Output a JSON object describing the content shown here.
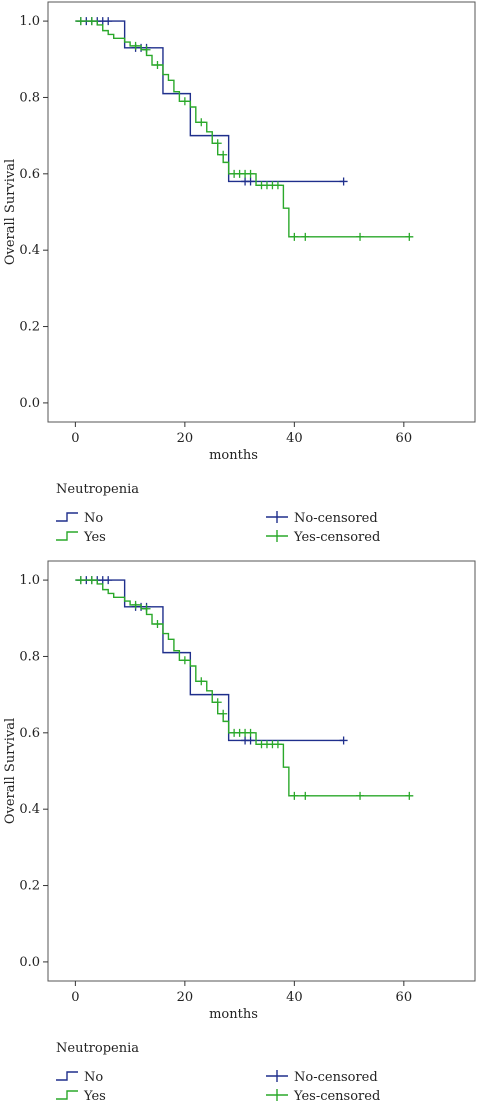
{
  "colors": {
    "no": "#1f2f8c",
    "yes": "#2aa82a",
    "axis": "#333333",
    "frame": "#555555"
  },
  "chart_data": [
    {
      "type": "line",
      "title": "",
      "xlabel": "months",
      "ylabel": "Overall Survival",
      "xlim": [
        -5,
        73
      ],
      "ylim": [
        -0.05,
        1.05
      ],
      "xticks": [
        0,
        20,
        40,
        60
      ],
      "yticks": [
        0.0,
        0.2,
        0.4,
        0.6,
        0.8,
        1.0
      ],
      "ytick_labels": [
        "0.0",
        "0.2",
        "0.4",
        "0.6",
        "0.8",
        "1.0"
      ],
      "grid": false,
      "legend_title": "Neutropenia",
      "legend_position": "bottom",
      "series": [
        {
          "name": "No",
          "color_key": "no",
          "steps": [
            [
              0,
              1.0
            ],
            [
              9,
              0.93
            ],
            [
              16,
              0.81
            ],
            [
              21,
              0.7
            ],
            [
              28,
              0.58
            ],
            [
              49,
              0.58
            ]
          ],
          "censored": [
            [
              1,
              1.0
            ],
            [
              2,
              1.0
            ],
            [
              3,
              1.0
            ],
            [
              4,
              1.0
            ],
            [
              5,
              1.0
            ],
            [
              6,
              1.0
            ],
            [
              11,
              0.93
            ],
            [
              12,
              0.93
            ],
            [
              13,
              0.93
            ],
            [
              31,
              0.58
            ],
            [
              32,
              0.58
            ],
            [
              49,
              0.58
            ]
          ]
        },
        {
          "name": "Yes",
          "color_key": "yes",
          "steps": [
            [
              0,
              1.0
            ],
            [
              4,
              0.99
            ],
            [
              5,
              0.975
            ],
            [
              6,
              0.965
            ],
            [
              7,
              0.955
            ],
            [
              9,
              0.945
            ],
            [
              10,
              0.935
            ],
            [
              12,
              0.925
            ],
            [
              13,
              0.91
            ],
            [
              14,
              0.885
            ],
            [
              16,
              0.86
            ],
            [
              17,
              0.845
            ],
            [
              18,
              0.815
            ],
            [
              19,
              0.79
            ],
            [
              21,
              0.775
            ],
            [
              22,
              0.735
            ],
            [
              24,
              0.71
            ],
            [
              25,
              0.68
            ],
            [
              26,
              0.65
            ],
            [
              27,
              0.63
            ],
            [
              28,
              0.6
            ],
            [
              33,
              0.57
            ],
            [
              38,
              0.51
            ],
            [
              39,
              0.435
            ],
            [
              61,
              0.435
            ]
          ],
          "censored": [
            [
              1,
              1.0
            ],
            [
              3,
              1.0
            ],
            [
              11,
              0.935
            ],
            [
              13,
              0.925
            ],
            [
              15,
              0.885
            ],
            [
              20,
              0.79
            ],
            [
              23,
              0.735
            ],
            [
              26,
              0.68
            ],
            [
              27,
              0.65
            ],
            [
              29,
              0.6
            ],
            [
              30,
              0.6
            ],
            [
              31,
              0.6
            ],
            [
              32,
              0.6
            ],
            [
              34,
              0.57
            ],
            [
              35,
              0.57
            ],
            [
              36,
              0.57
            ],
            [
              37,
              0.57
            ],
            [
              40,
              0.435
            ],
            [
              42,
              0.435
            ],
            [
              52,
              0.435
            ],
            [
              61,
              0.435
            ]
          ]
        }
      ],
      "legend": {
        "items": [
          {
            "label": "No",
            "kind": "line",
            "color_key": "no"
          },
          {
            "label": "No-censored",
            "kind": "censor",
            "color_key": "no"
          },
          {
            "label": "Yes",
            "kind": "line",
            "color_key": "yes"
          },
          {
            "label": "Yes-censored",
            "kind": "censor",
            "color_key": "yes"
          }
        ]
      }
    },
    {
      "type": "line",
      "title": "",
      "xlabel": "months",
      "ylabel": "Overall Survival",
      "xlim": [
        -5,
        73
      ],
      "ylim": [
        -0.05,
        1.05
      ],
      "xticks": [
        0,
        20,
        40,
        60
      ],
      "yticks": [
        0.0,
        0.2,
        0.4,
        0.6,
        0.8,
        1.0
      ],
      "ytick_labels": [
        "0.0",
        "0.2",
        "0.4",
        "0.6",
        "0.8",
        "1.0"
      ],
      "grid": false,
      "legend_title": "Neutropenia",
      "legend_position": "bottom",
      "series": [
        {
          "name": "No",
          "color_key": "no",
          "steps": [
            [
              0,
              1.0
            ],
            [
              9,
              0.93
            ],
            [
              16,
              0.81
            ],
            [
              21,
              0.7
            ],
            [
              28,
              0.58
            ],
            [
              49,
              0.58
            ]
          ],
          "censored": [
            [
              1,
              1.0
            ],
            [
              2,
              1.0
            ],
            [
              3,
              1.0
            ],
            [
              4,
              1.0
            ],
            [
              5,
              1.0
            ],
            [
              6,
              1.0
            ],
            [
              11,
              0.93
            ],
            [
              12,
              0.93
            ],
            [
              13,
              0.93
            ],
            [
              31,
              0.58
            ],
            [
              32,
              0.58
            ],
            [
              49,
              0.58
            ]
          ]
        },
        {
          "name": "Yes",
          "color_key": "yes",
          "steps": [
            [
              0,
              1.0
            ],
            [
              4,
              0.99
            ],
            [
              5,
              0.975
            ],
            [
              6,
              0.965
            ],
            [
              7,
              0.955
            ],
            [
              9,
              0.945
            ],
            [
              10,
              0.935
            ],
            [
              12,
              0.925
            ],
            [
              13,
              0.91
            ],
            [
              14,
              0.885
            ],
            [
              16,
              0.86
            ],
            [
              17,
              0.845
            ],
            [
              18,
              0.815
            ],
            [
              19,
              0.79
            ],
            [
              21,
              0.775
            ],
            [
              22,
              0.735
            ],
            [
              24,
              0.71
            ],
            [
              25,
              0.68
            ],
            [
              26,
              0.65
            ],
            [
              27,
              0.63
            ],
            [
              28,
              0.6
            ],
            [
              33,
              0.57
            ],
            [
              38,
              0.51
            ],
            [
              39,
              0.435
            ],
            [
              61,
              0.435
            ]
          ],
          "censored": [
            [
              1,
              1.0
            ],
            [
              3,
              1.0
            ],
            [
              11,
              0.935
            ],
            [
              13,
              0.925
            ],
            [
              15,
              0.885
            ],
            [
              20,
              0.79
            ],
            [
              23,
              0.735
            ],
            [
              26,
              0.68
            ],
            [
              27,
              0.65
            ],
            [
              29,
              0.6
            ],
            [
              30,
              0.6
            ],
            [
              31,
              0.6
            ],
            [
              32,
              0.6
            ],
            [
              34,
              0.57
            ],
            [
              35,
              0.57
            ],
            [
              36,
              0.57
            ],
            [
              37,
              0.57
            ],
            [
              40,
              0.435
            ],
            [
              42,
              0.435
            ],
            [
              52,
              0.435
            ],
            [
              61,
              0.435
            ]
          ]
        }
      ],
      "legend": {
        "items": [
          {
            "label": "No",
            "kind": "line",
            "color_key": "no"
          },
          {
            "label": "No-censored",
            "kind": "censor",
            "color_key": "no"
          },
          {
            "label": "Yes",
            "kind": "line",
            "color_key": "yes"
          },
          {
            "label": "Yes-censored",
            "kind": "censor",
            "color_key": "yes"
          }
        ]
      }
    }
  ]
}
